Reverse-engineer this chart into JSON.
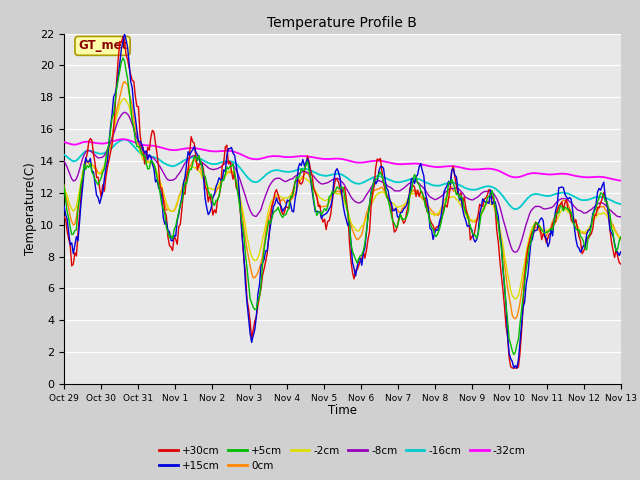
{
  "title": "Temperature Profile B",
  "xlabel": "Time",
  "ylabel": "Temperature(C)",
  "ylim": [
    0,
    22
  ],
  "xlim": [
    0,
    15
  ],
  "gt_met_label": "GT_met",
  "tick_labels": [
    "Oct 29",
    "Oct 30",
    "Oct 31",
    "Nov 1",
    "Nov 2",
    "Nov 3",
    "Nov 4",
    "Nov 5",
    "Nov 6",
    "Nov 7",
    "Nov 8",
    "Nov 9",
    "Nov 10",
    "Nov 11",
    "Nov 12",
    "Nov 13"
  ],
  "series_colors": {
    "+30cm": "#dd0000",
    "+15cm": "#0000dd",
    "+5cm": "#00bb00",
    "0cm": "#ff8800",
    "-2cm": "#dddd00",
    "-8cm": "#9900bb",
    "-16cm": "#00cccc",
    "-32cm": "#ff00ff"
  }
}
